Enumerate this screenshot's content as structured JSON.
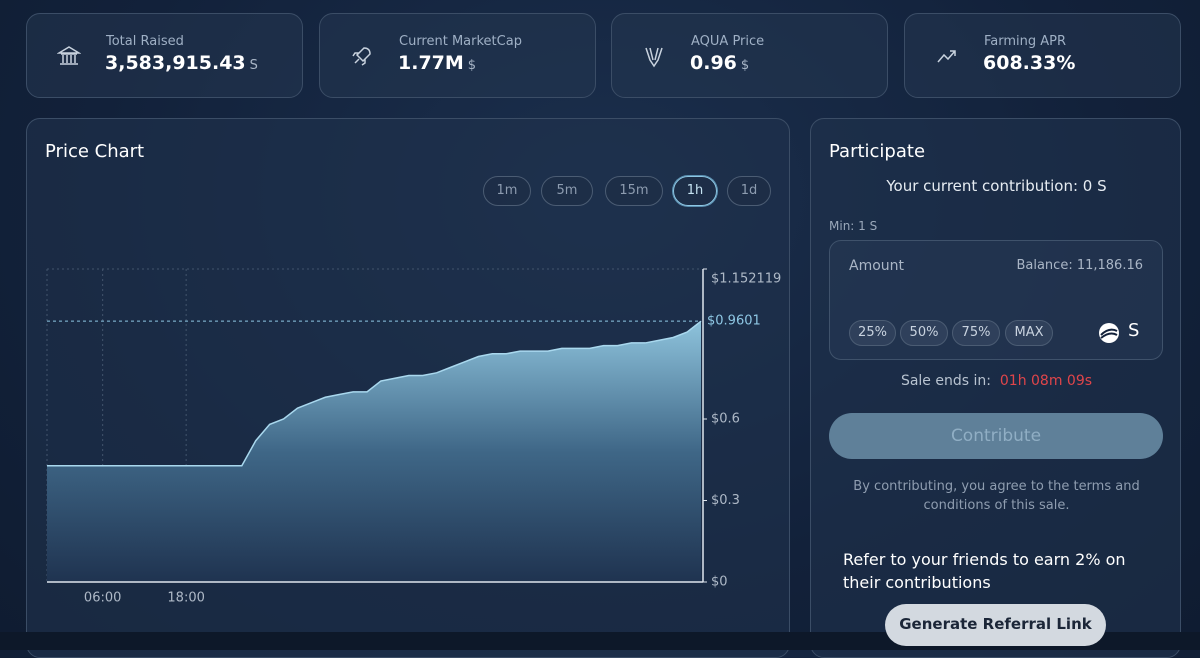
{
  "stats": [
    {
      "label": "Total Raised",
      "value": "3,583,915.43",
      "unit": "S"
    },
    {
      "label": "Current MarketCap",
      "value": "1.77M",
      "unit": "$"
    },
    {
      "label": "AQUA Price",
      "value": "0.96",
      "unit": "$"
    },
    {
      "label": "Farming APR",
      "value": "608.33%"
    }
  ],
  "chart_data": {
    "type": "area",
    "title": "Price Chart",
    "intervals": [
      "1m",
      "5m",
      "15m",
      "1h",
      "1d"
    ],
    "active_interval": "1h",
    "categories": [
      null,
      null,
      null,
      null,
      "06:00",
      null,
      null,
      null,
      null,
      null,
      "18:00",
      null,
      null,
      null,
      null,
      null,
      null,
      null,
      null,
      null,
      null,
      null,
      null,
      null,
      null,
      null,
      null,
      null,
      null,
      null,
      null,
      null,
      null,
      null,
      null,
      null,
      null,
      null,
      null,
      null,
      null,
      null,
      null,
      null,
      null,
      null,
      null,
      null
    ],
    "values": [
      0.428,
      0.428,
      0.428,
      0.428,
      0.428,
      0.428,
      0.428,
      0.428,
      0.428,
      0.428,
      0.428,
      0.428,
      0.428,
      0.428,
      0.428,
      0.52,
      0.58,
      0.6,
      0.64,
      0.66,
      0.68,
      0.69,
      0.7,
      0.7,
      0.74,
      0.75,
      0.76,
      0.76,
      0.77,
      0.79,
      0.81,
      0.83,
      0.84,
      0.84,
      0.85,
      0.85,
      0.85,
      0.86,
      0.86,
      0.86,
      0.87,
      0.87,
      0.88,
      0.88,
      0.89,
      0.9,
      0.92,
      0.9601
    ],
    "color": "#a9d8ee",
    "ylim": [
      0,
      1.152119
    ],
    "yticks": [
      {
        "value": 0,
        "label": "$0"
      },
      {
        "value": 0.3,
        "label": "$0.3"
      },
      {
        "value": 0.6,
        "label": "$0.6"
      },
      {
        "value": 1.152119,
        "label": "$1.152119"
      }
    ],
    "current_price": {
      "value": 0.9601,
      "label": "$0.9601"
    },
    "grid": true
  },
  "participate": {
    "title": "Participate",
    "contribution": "Your current contribution: 0 S",
    "min": "Min: 1 S",
    "amount_label": "Amount",
    "balance": "Balance: 11,186.16",
    "percent_buttons": [
      "25%",
      "50%",
      "75%",
      "MAX"
    ],
    "token": "S",
    "sale_ends_label": "Sale ends in:",
    "sale_ends_timer": "01h 08m 09s",
    "button": "Contribute",
    "terms": [
      "By contributing, you agree to the terms and",
      "conditions of this sale."
    ],
    "refer": [
      "Refer to your friends to earn 2% on",
      "their contributions"
    ],
    "referral_button": "Generate Referral Link"
  }
}
